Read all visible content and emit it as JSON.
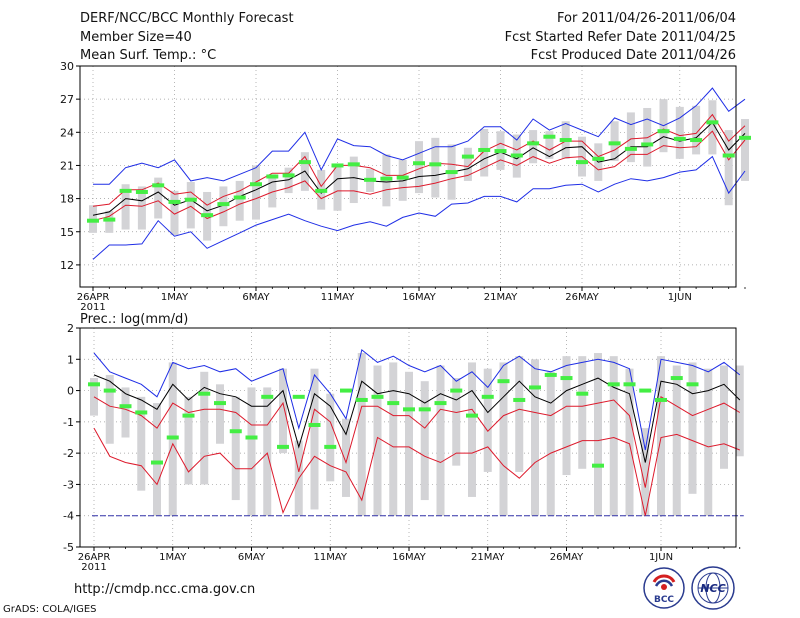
{
  "header": {
    "title": "DERF/NCC/BCC Monthly Forecast",
    "member_size": "Member Size=40",
    "variable": "Mean Surf. Temp.: °C",
    "period": "For 2011/04/26-2011/06/04",
    "started": "Fcst Started Refer Date 2011/04/25",
    "produced": "Fcst Produced Date 2011/04/26"
  },
  "footer": {
    "url": "http://cmdp.ncc.cma.gov.cn",
    "credit": "GrADS: COLA/IGES",
    "logo1_text": "BCC",
    "logo2_text": "NCC"
  },
  "colors": {
    "envelope": "#1f2ee6",
    "spread": "#dd1a2c",
    "mean": "#000000",
    "obs": "#44ee44",
    "box": "#d3d3d6",
    "baseline": "#3333aa"
  },
  "chart_data": [
    {
      "type": "line",
      "title": "Mean Surf. Temp.: °C",
      "ylabel": "°C",
      "ylim": [
        10,
        30
      ],
      "yticks": [
        12,
        15,
        18,
        21,
        24,
        27,
        30
      ],
      "x_start_day": 1,
      "x_ticks": [
        {
          "day": 1,
          "label": "26APR",
          "sub": "2011"
        },
        {
          "day": 6,
          "label": "1MAY"
        },
        {
          "day": 11,
          "label": "6MAY"
        },
        {
          "day": 16,
          "label": "11MAY"
        },
        {
          "day": 21,
          "label": "16MAY"
        },
        {
          "day": 26,
          "label": "21MAY"
        },
        {
          "day": 31,
          "label": "26MAY"
        },
        {
          "day": 37,
          "label": "1JUN"
        }
      ],
      "series": [
        {
          "name": "ensemble max",
          "role": "envelope",
          "values": [
            19.3,
            19.3,
            20.8,
            21.2,
            20.8,
            21.5,
            19.6,
            19.9,
            19.6,
            20.2,
            20.8,
            22.3,
            22.3,
            24.0,
            20.6,
            23.4,
            22.8,
            22.7,
            21.9,
            21.5,
            22.1,
            22.7,
            22.7,
            23.2,
            24.5,
            24.5,
            23.3,
            25.2,
            24.2,
            24.8,
            24.2,
            23.6,
            25.3,
            24.7,
            25.2,
            24.6,
            25.3,
            26.4,
            28.0,
            25.9,
            27.0
          ]
        },
        {
          "name": "upper spread",
          "role": "spread",
          "values": [
            17.3,
            17.5,
            18.8,
            18.8,
            19.4,
            18.4,
            18.6,
            17.4,
            18.2,
            18.7,
            19.5,
            20.3,
            20.3,
            21.8,
            19.1,
            21.0,
            21.0,
            20.8,
            20.1,
            20.1,
            20.7,
            21.2,
            21.1,
            20.9,
            22.3,
            23.0,
            22.4,
            23.2,
            22.4,
            23.2,
            23.2,
            21.8,
            22.4,
            23.4,
            23.5,
            24.3,
            23.7,
            23.9,
            25.6,
            23.2,
            24.6
          ]
        },
        {
          "name": "ensemble mean",
          "role": "mean",
          "values": [
            16.5,
            16.8,
            18.0,
            17.8,
            18.6,
            17.4,
            17.9,
            16.9,
            17.4,
            18.2,
            18.8,
            19.5,
            19.7,
            20.5,
            18.5,
            19.8,
            19.9,
            19.6,
            19.5,
            19.6,
            20.0,
            20.1,
            20.4,
            20.7,
            21.6,
            22.2,
            21.6,
            22.6,
            21.8,
            22.6,
            22.7,
            21.3,
            21.6,
            22.7,
            22.7,
            23.6,
            23.2,
            23.5,
            24.9,
            22.4,
            23.9
          ]
        },
        {
          "name": "lower spread",
          "role": "spread",
          "values": [
            16.0,
            16.4,
            17.4,
            17.3,
            17.8,
            16.6,
            17.3,
            16.2,
            16.8,
            17.5,
            18.0,
            18.6,
            19.0,
            19.6,
            18.0,
            18.7,
            18.7,
            18.4,
            18.8,
            19.0,
            19.1,
            19.4,
            19.8,
            20.1,
            20.8,
            21.5,
            21.0,
            21.8,
            21.2,
            21.7,
            21.8,
            20.6,
            20.9,
            22.0,
            22.0,
            22.8,
            22.6,
            22.7,
            24.1,
            21.5,
            23.3
          ]
        },
        {
          "name": "ensemble min",
          "role": "envelope",
          "values": [
            12.5,
            13.8,
            13.8,
            13.9,
            16.0,
            14.6,
            15.0,
            13.5,
            14.2,
            14.9,
            15.6,
            16.1,
            16.6,
            16.0,
            15.5,
            15.1,
            15.6,
            15.9,
            15.5,
            16.3,
            16.7,
            16.4,
            17.5,
            17.6,
            18.2,
            18.2,
            17.7,
            18.9,
            18.9,
            19.2,
            19.3,
            18.6,
            19.3,
            19.8,
            19.6,
            19.9,
            20.4,
            20.6,
            21.8,
            18.5,
            20.5
          ]
        }
      ],
      "boxes": [
        [
          14.9,
          17.4
        ],
        [
          14.9,
          16.9
        ],
        [
          15.2,
          19.3
        ],
        [
          15.2,
          19.1
        ],
        [
          16.2,
          19.9
        ],
        [
          14.7,
          18.7
        ],
        [
          15.3,
          19.5
        ],
        [
          14.2,
          18.6
        ],
        [
          15.5,
          19.1
        ],
        [
          16.0,
          19.6
        ],
        [
          16.1,
          21.0
        ],
        [
          17.2,
          20.2
        ],
        [
          18.5,
          20.8
        ],
        [
          18.7,
          22.2
        ],
        [
          17.0,
          20.6
        ],
        [
          16.9,
          21.0
        ],
        [
          17.6,
          21.8
        ],
        [
          18.6,
          20.7
        ],
        [
          17.3,
          22.0
        ],
        [
          17.8,
          21.5
        ],
        [
          18.5,
          23.2
        ],
        [
          18.1,
          23.5
        ],
        [
          17.9,
          22.9
        ],
        [
          19.6,
          22.6
        ],
        [
          20.0,
          24.3
        ],
        [
          20.6,
          24.1
        ],
        [
          19.9,
          23.8
        ],
        [
          21.2,
          24.2
        ],
        [
          21.6,
          24.1
        ],
        [
          21.6,
          25.0
        ],
        [
          20.0,
          23.6
        ],
        [
          19.6,
          23.0
        ],
        [
          21.4,
          25.0
        ],
        [
          21.3,
          25.8
        ],
        [
          20.9,
          26.2
        ],
        [
          22.2,
          27.0
        ],
        [
          21.6,
          26.3
        ],
        [
          22.0,
          26.4
        ],
        [
          22.0,
          26.9
        ],
        [
          17.4,
          24.2
        ],
        [
          19.6,
          25.2
        ]
      ],
      "observed": [
        16.0,
        16.1,
        18.7,
        18.6,
        19.2,
        17.7,
        17.9,
        16.5,
        17.5,
        18.1,
        19.3,
        20.0,
        20.1,
        21.3,
        18.7,
        21.0,
        21.1,
        19.7,
        19.8,
        19.9,
        21.2,
        21.1,
        20.4,
        21.8,
        22.4,
        22.3,
        21.9,
        23.0,
        23.6,
        23.3,
        21.3,
        21.6,
        23.0,
        22.5,
        22.9,
        24.1,
        23.4,
        23.3,
        24.9,
        21.9,
        23.5
      ]
    },
    {
      "type": "line",
      "title": "Prec.: log(mm/d)",
      "ylabel": "log(mm/d)",
      "ylim": [
        -5,
        2
      ],
      "yticks": [
        -5,
        -4,
        -3,
        -2,
        -1,
        0,
        1,
        2
      ],
      "baseline": -4,
      "x_start_day": 1,
      "x_ticks": [
        {
          "day": 1,
          "label": "26APR",
          "sub": "2011"
        },
        {
          "day": 6,
          "label": "1MAY"
        },
        {
          "day": 11,
          "label": "6MAY"
        },
        {
          "day": 16,
          "label": "11MAY"
        },
        {
          "day": 21,
          "label": "16MAY"
        },
        {
          "day": 26,
          "label": "21MAY"
        },
        {
          "day": 31,
          "label": "26MAY"
        },
        {
          "day": 37,
          "label": "1JUN"
        }
      ],
      "series": [
        {
          "name": "ensemble max",
          "role": "envelope",
          "values": [
            1.2,
            0.6,
            0.4,
            0.2,
            -0.2,
            0.9,
            0.7,
            0.8,
            0.6,
            0.7,
            0.3,
            0.5,
            0.7,
            -1.2,
            0.5,
            -0.1,
            -0.9,
            1.3,
            0.9,
            1.1,
            0.8,
            0.6,
            0.8,
            0.3,
            0.6,
            0.1,
            0.8,
            1.1,
            0.7,
            0.6,
            0.8,
            0.9,
            1.0,
            0.9,
            0.7,
            -1.9,
            1.0,
            0.9,
            0.8,
            0.6,
            0.9,
            0.5
          ]
        },
        {
          "name": "ensemble mean",
          "role": "mean",
          "values": [
            0.5,
            0.3,
            -0.1,
            -0.3,
            -0.6,
            0.2,
            -0.3,
            0.1,
            -0.1,
            -0.2,
            -0.5,
            -0.5,
            0.0,
            -1.8,
            -0.1,
            -0.5,
            -1.4,
            0.3,
            -0.1,
            0.0,
            -0.1,
            -0.4,
            -0.1,
            -0.3,
            0.0,
            -0.7,
            -0.2,
            0.3,
            -0.2,
            -0.4,
            0.0,
            0.2,
            0.4,
            0.1,
            -0.1,
            -2.3,
            0.3,
            0.2,
            -0.1,
            0.0,
            0.2,
            -0.3
          ]
        },
        {
          "name": "upper spread",
          "role": "spread",
          "values": [
            -0.2,
            -0.5,
            -0.6,
            -0.8,
            -1.2,
            -0.4,
            -0.7,
            -0.6,
            -0.6,
            -0.7,
            -1.1,
            -1.1,
            -0.4,
            -2.6,
            -0.6,
            -1.0,
            -2.3,
            -0.5,
            -0.5,
            -0.8,
            -0.8,
            -1.2,
            -0.6,
            -0.7,
            -0.6,
            -1.3,
            -0.8,
            -0.6,
            -0.7,
            -0.8,
            -0.5,
            -0.5,
            -0.4,
            -0.3,
            -0.8,
            -3.1,
            -0.2,
            -0.5,
            -0.8,
            -0.6,
            -0.4,
            -0.7
          ]
        },
        {
          "name": "lower spread",
          "role": "spread",
          "values": [
            -1.2,
            -2.1,
            -2.3,
            -2.4,
            -3.0,
            -1.7,
            -2.6,
            -2.1,
            -2.0,
            -2.5,
            -2.5,
            -2.0,
            -3.9,
            -2.8,
            -2.1,
            -2.4,
            -2.6,
            -3.5,
            -1.5,
            -1.8,
            -1.8,
            -2.1,
            -2.3,
            -2.0,
            -2.0,
            -1.8,
            -2.4,
            -2.8,
            -2.3,
            -2.0,
            -1.8,
            -1.6,
            -1.6,
            -1.5,
            -1.7,
            -4.0,
            -1.5,
            -1.4,
            -1.6,
            -1.8,
            -1.7,
            -1.9
          ]
        }
      ],
      "boxes": [
        [
          -0.8,
          0.4
        ],
        [
          -1.7,
          0.5
        ],
        [
          -1.5,
          0.1
        ],
        [
          -3.2,
          -0.2
        ],
        [
          -4.0,
          -0.4
        ],
        [
          -4.0,
          0.9
        ],
        [
          -3.0,
          -0.2
        ],
        [
          -3.0,
          0.6
        ],
        [
          -1.7,
          0.2
        ],
        [
          -3.5,
          -0.2
        ],
        [
          -4.0,
          0.1
        ],
        [
          -4.0,
          0.1
        ],
        [
          -2.0,
          0.7
        ],
        [
          -4.0,
          -1.6
        ],
        [
          -3.8,
          0.7
        ],
        [
          -2.9,
          -0.1
        ],
        [
          -3.4,
          -0.9
        ],
        [
          -4.0,
          1.2
        ],
        [
          -4.0,
          0.8
        ],
        [
          -4.0,
          0.9
        ],
        [
          -4.0,
          0.6
        ],
        [
          -3.5,
          0.3
        ],
        [
          -4.0,
          0.8
        ],
        [
          -2.4,
          0.4
        ],
        [
          -3.4,
          0.9
        ],
        [
          -2.6,
          0.7
        ],
        [
          -4.0,
          0.9
        ],
        [
          -2.6,
          1.1
        ],
        [
          -4.0,
          1.0
        ],
        [
          -4.0,
          0.6
        ],
        [
          -2.7,
          1.1
        ],
        [
          -2.5,
          1.1
        ],
        [
          -4.0,
          1.2
        ],
        [
          -4.0,
          1.1
        ],
        [
          -4.0,
          0.7
        ],
        [
          -4.0,
          -1.2
        ],
        [
          -4.0,
          1.1
        ],
        [
          -4.0,
          0.8
        ],
        [
          -3.3,
          0.9
        ],
        [
          -4.0,
          0.7
        ],
        [
          -2.5,
          0.8
        ],
        [
          -2.1,
          0.8
        ]
      ],
      "observed": [
        0.2,
        0.0,
        -0.5,
        -0.7,
        -2.3,
        -1.5,
        -0.8,
        -0.1,
        -0.4,
        -1.3,
        -1.5,
        -0.2,
        -1.8,
        -0.2,
        -1.1,
        -1.8,
        0.0,
        -0.3,
        -0.2,
        -0.4,
        -0.6,
        -0.6,
        -0.4,
        0.0,
        -0.8,
        -0.2,
        0.3,
        -0.3,
        0.1,
        0.5,
        0.4,
        -0.1,
        -2.4,
        0.2,
        0.2,
        0.0,
        -0.3,
        0.4,
        0.2
      ]
    }
  ]
}
